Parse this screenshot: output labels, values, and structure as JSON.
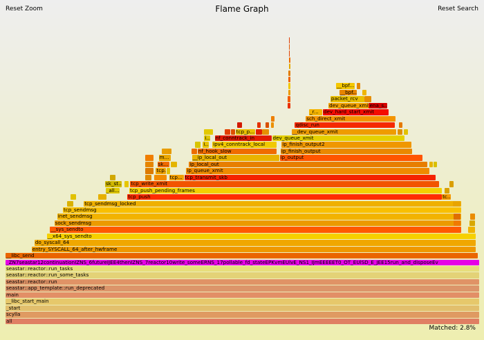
{
  "toolbar": {
    "reset_zoom": "Reset Zoom",
    "title": "Flame Graph",
    "reset_search": "Reset Search"
  },
  "status": {
    "matched": "Matched: 2.8%"
  },
  "search_highlight_color": "#e600e6",
  "frames": [
    {
      "label": "all",
      "x0": 0.0,
      "x1": 1.0,
      "depth": 0,
      "color": "#e07f63"
    },
    {
      "label": "scylla",
      "x0": 0.0,
      "x1": 1.0,
      "depth": 1,
      "color": "#df9a62"
    },
    {
      "label": "_start",
      "x0": 0.0,
      "x1": 1.0,
      "depth": 2,
      "color": "#e2bf6d"
    },
    {
      "label": "__libc_start_main",
      "x0": 0.0,
      "x1": 1.0,
      "depth": 3,
      "color": "#e6c86b"
    },
    {
      "label": "main",
      "x0": 0.0,
      "x1": 1.0,
      "depth": 4,
      "color": "#e28f66"
    },
    {
      "label": "seastar::app_template::run_deprecated",
      "x0": 0.0,
      "x1": 1.0,
      "depth": 5,
      "color": "#dc956a"
    },
    {
      "label": "seastar::reactor::run",
      "x0": 0.0,
      "x1": 1.0,
      "depth": 6,
      "color": "#e09366"
    },
    {
      "label": "seastar::reactor::run_some_tasks",
      "x0": 0.0,
      "x1": 1.0,
      "depth": 7,
      "color": "#e3d277"
    },
    {
      "label": "seastar::reactor::run_tasks",
      "x0": 0.0,
      "x1": 1.0,
      "depth": 8,
      "color": "#e6de7c"
    },
    {
      "label": "_ZN7seastar12continuationIZNS_6futureIJEE4thenIZNS_7reactor10write_someERNS_17pollable_fd_stateEPKvmEUlvE_NS1_IJmEEEEET0_OT_EUlSD_E_JEE15run_and_disposeEv",
      "x0": 0.0,
      "x1": 1.0,
      "depth": 9,
      "color": "#e600e6"
    },
    {
      "label": "__libc_send",
      "x0": 0.0,
      "x1": 0.997,
      "depth": 10,
      "color": "#ea6500"
    },
    {
      "label": "entry_SYSCALL_64_after_hwframe",
      "x0": 0.055,
      "x1": 0.992,
      "depth": 11,
      "color": "#ef9800"
    },
    {
      "label": "do_syscall_64",
      "x0": 0.061,
      "x1": 0.992,
      "depth": 12,
      "color": "#f0a700"
    },
    {
      "label": "__x64_sys_sendto",
      "x0": 0.087,
      "x1": 0.992,
      "depth": 13,
      "color": "#f6d000"
    },
    {
      "label": "__sys_sendto",
      "x0": 0.094,
      "x1": 0.961,
      "depth": 14,
      "color": "#ff5a00"
    },
    {
      "label": "sock_sendmsg",
      "x0": 0.103,
      "x1": 0.961,
      "depth": 15,
      "color": "#ec9a00"
    },
    {
      "label": "inet_sendmsg",
      "x0": 0.109,
      "x1": 0.961,
      "depth": 16,
      "color": "#f2b300"
    },
    {
      "label": "tcp_sendmsg",
      "x0": 0.121,
      "x1": 0.961,
      "depth": 17,
      "color": "#f9bf00"
    },
    {
      "label": "",
      "x0": 0.13,
      "x1": 0.144,
      "depth": 18,
      "color": "#d9b100"
    },
    {
      "label": "tcp_sendmsg_locked",
      "x0": 0.165,
      "x1": 0.961,
      "depth": 18,
      "color": "#efb000"
    },
    {
      "label": "",
      "x0": 0.137,
      "x1": 0.149,
      "depth": 19,
      "color": "#e1c100"
    },
    {
      "label": "",
      "x0": 0.196,
      "x1": 0.214,
      "depth": 19,
      "color": "#e6b000"
    },
    {
      "label": "tcp_push",
      "x0": 0.257,
      "x1": 0.92,
      "depth": 19,
      "color": "#ff2d00"
    },
    {
      "label": "tc...",
      "x0": 0.92,
      "x1": 0.94,
      "depth": 19,
      "color": "#f59a00"
    },
    {
      "label": "",
      "x0": 0.943,
      "x1": 0.96,
      "depth": 18,
      "color": "#e8a400"
    },
    {
      "label": "",
      "x0": 0.945,
      "x1": 0.96,
      "depth": 15,
      "color": "#f07a00"
    },
    {
      "label": "",
      "x0": 0.945,
      "x1": 0.96,
      "depth": 16,
      "color": "#e06f00"
    },
    {
      "label": "",
      "x0": 0.975,
      "x1": 0.99,
      "depth": 14,
      "color": "#f0b300"
    },
    {
      "label": "",
      "x0": 0.978,
      "x1": 0.99,
      "depth": 15,
      "color": "#d8a800"
    },
    {
      "label": "",
      "x0": 0.98,
      "x1": 0.99,
      "depth": 16,
      "color": "#ea8c00"
    },
    {
      "label": "_all...",
      "x0": 0.211,
      "x1": 0.241,
      "depth": 20,
      "color": "#e0c800"
    },
    {
      "label": "tcp_push_pending_frames",
      "x0": 0.261,
      "x1": 0.92,
      "depth": 20,
      "color": "#f3d000"
    },
    {
      "label": "",
      "x0": 0.925,
      "x1": 0.937,
      "depth": 20,
      "color": "#d9a000"
    },
    {
      "label": "sk_st...",
      "x0": 0.21,
      "x1": 0.246,
      "depth": 21,
      "color": "#d1b800"
    },
    {
      "label": "",
      "x0": 0.25,
      "x1": 0.26,
      "depth": 21,
      "color": "#e6c600"
    },
    {
      "label": "tcp_write_xmit",
      "x0": 0.263,
      "x1": 0.915,
      "depth": 21,
      "color": "#f25400"
    },
    {
      "label": "",
      "x0": 0.936,
      "x1": 0.945,
      "depth": 21,
      "color": "#d99e00"
    },
    {
      "label": "",
      "x0": 0.22,
      "x1": 0.232,
      "depth": 22,
      "color": "#d1a800"
    },
    {
      "label": "",
      "x0": 0.294,
      "x1": 0.308,
      "depth": 22,
      "color": "#e08a00"
    },
    {
      "label": "",
      "x0": 0.314,
      "x1": 0.34,
      "depth": 22,
      "color": "#f28c00"
    },
    {
      "label": "tcp...",
      "x0": 0.345,
      "x1": 0.377,
      "depth": 22,
      "color": "#f29f00"
    },
    {
      "label": "tcp_transmit_skb",
      "x0": 0.377,
      "x1": 0.908,
      "depth": 22,
      "color": "#f52300"
    },
    {
      "label": "",
      "x0": 0.295,
      "x1": 0.313,
      "depth": 23,
      "color": "#dd7a00"
    },
    {
      "label": "tcp...",
      "x0": 0.317,
      "x1": 0.339,
      "depth": 23,
      "color": "#f0a200"
    },
    {
      "label": "",
      "x0": 0.339,
      "x1": 0.348,
      "depth": 23,
      "color": "#e2bf00"
    },
    {
      "label": "ip_queue_xmit",
      "x0": 0.381,
      "x1": 0.895,
      "depth": 23,
      "color": "#ef8a00"
    },
    {
      "label": "",
      "x0": 0.295,
      "x1": 0.313,
      "depth": 24,
      "color": "#e68500"
    },
    {
      "label": "sk...",
      "x0": 0.32,
      "x1": 0.347,
      "depth": 24,
      "color": "#f06a00"
    },
    {
      "label": "",
      "x0": 0.349,
      "x1": 0.363,
      "depth": 24,
      "color": "#e4b500"
    },
    {
      "label": "ip_local_out",
      "x0": 0.387,
      "x1": 0.89,
      "depth": 24,
      "color": "#e77e00"
    },
    {
      "label": "",
      "x0": 0.893,
      "x1": 0.902,
      "depth": 24,
      "color": "#e6b400"
    },
    {
      "label": "",
      "x0": 0.902,
      "x1": 0.911,
      "depth": 24,
      "color": "#d9c000"
    },
    {
      "label": "",
      "x0": 0.295,
      "x1": 0.313,
      "depth": 25,
      "color": "#f07e00"
    },
    {
      "label": "m...",
      "x0": 0.323,
      "x1": 0.349,
      "depth": 25,
      "color": "#eaa700"
    },
    {
      "label": "__ip_local_out",
      "x0": 0.393,
      "x1": 0.578,
      "depth": 25,
      "color": "#e9b300"
    },
    {
      "label": "ip_output",
      "x0": 0.578,
      "x1": 0.88,
      "depth": 25,
      "color": "#ff5500"
    },
    {
      "label": "",
      "x0": 0.33,
      "x1": 0.349,
      "depth": 26,
      "color": "#e89d00"
    },
    {
      "label": "nf_hook_slow",
      "x0": 0.405,
      "x1": 0.572,
      "depth": 26,
      "color": "#f06b00"
    },
    {
      "label": "ip_finish_output",
      "x0": 0.58,
      "x1": 0.858,
      "depth": 26,
      "color": "#ea8800"
    },
    {
      "label": "",
      "x0": 0.342,
      "x1": 0.351,
      "depth": 26,
      "color": "#e69a00"
    },
    {
      "label": "",
      "x0": 0.392,
      "x1": 0.404,
      "depth": 26,
      "color": "#ec6c00"
    },
    {
      "label": "i...",
      "x0": 0.416,
      "x1": 0.43,
      "depth": 27,
      "color": "#e8c200"
    },
    {
      "label": "ipv4_conntrack_local",
      "x0": 0.436,
      "x1": 0.573,
      "depth": 27,
      "color": "#f0c900"
    },
    {
      "label": "ip_finish_output2",
      "x0": 0.582,
      "x1": 0.857,
      "depth": 27,
      "color": "#f09700"
    },
    {
      "label": "",
      "x0": 0.399,
      "x1": 0.412,
      "depth": 27,
      "color": "#d9c400"
    },
    {
      "label": "i...",
      "x0": 0.419,
      "x1": 0.432,
      "depth": 28,
      "color": "#e0c700"
    },
    {
      "label": "nf_conntrack_in",
      "x0": 0.441,
      "x1": 0.562,
      "depth": 28,
      "color": "#e21b00"
    },
    {
      "label": "dev_queue_xmit",
      "x0": 0.562,
      "x1": 0.842,
      "depth": 28,
      "color": "#e5d000"
    },
    {
      "label": "",
      "x0": 0.418,
      "x1": 0.438,
      "depth": 29,
      "color": "#e2c800"
    },
    {
      "label": "",
      "x0": 0.462,
      "x1": 0.474,
      "depth": 29,
      "color": "#e24000"
    },
    {
      "label": "",
      "x0": 0.475,
      "x1": 0.485,
      "depth": 29,
      "color": "#dd5000"
    },
    {
      "label": "tcp_p...",
      "x0": 0.485,
      "x1": 0.527,
      "depth": 29,
      "color": "#e9c100"
    },
    {
      "label": "",
      "x0": 0.527,
      "x1": 0.541,
      "depth": 29,
      "color": "#e12100"
    },
    {
      "label": "",
      "x0": 0.541,
      "x1": 0.556,
      "depth": 29,
      "color": "#e79000"
    },
    {
      "label": "__dev_queue_xmit",
      "x0": 0.603,
      "x1": 0.825,
      "depth": 29,
      "color": "#ef9c00"
    },
    {
      "label": "",
      "x0": 0.827,
      "x1": 0.838,
      "depth": 29,
      "color": "#e09000"
    },
    {
      "label": "",
      "x0": 0.84,
      "x1": 0.849,
      "depth": 29,
      "color": "#e2c200"
    },
    {
      "label": "",
      "x0": 0.489,
      "x1": 0.499,
      "depth": 30,
      "color": "#d21a00"
    },
    {
      "label": "",
      "x0": 0.53,
      "x1": 0.539,
      "depth": 30,
      "color": "#e43200"
    },
    {
      "label": "",
      "x0": 0.548,
      "x1": 0.556,
      "depth": 30,
      "color": "#d85000"
    },
    {
      "label": "",
      "x0": 0.56,
      "x1": 0.566,
      "depth": 30,
      "color": "#ec9000"
    },
    {
      "label": "qdisc_run",
      "x0": 0.61,
      "x1": 0.822,
      "depth": 30,
      "color": "#f52900"
    },
    {
      "label": "",
      "x0": 0.829,
      "x1": 0.838,
      "depth": 30,
      "color": "#e57900"
    },
    {
      "label": "",
      "x0": 0.56,
      "x1": 0.568,
      "depth": 31,
      "color": "#ed7e00"
    },
    {
      "label": "sch_direct_xmit",
      "x0": 0.633,
      "x1": 0.823,
      "depth": 31,
      "color": "#f49400"
    },
    {
      "label": "_r...",
      "x0": 0.64,
      "x1": 0.669,
      "depth": 32,
      "color": "#f3b300"
    },
    {
      "label": "dev_hard_start_xmit",
      "x0": 0.669,
      "x1": 0.808,
      "depth": 32,
      "color": "#f40d00"
    },
    {
      "label": "dev_queue_xmit...",
      "x0": 0.681,
      "x1": 0.766,
      "depth": 33,
      "color": "#f2a100"
    },
    {
      "label": "ena_s...",
      "x0": 0.766,
      "x1": 0.806,
      "depth": 33,
      "color": "#d40000"
    },
    {
      "label": "packet_rcv",
      "x0": 0.685,
      "x1": 0.757,
      "depth": 34,
      "color": "#e9be00"
    },
    {
      "label": "",
      "x0": 0.757,
      "x1": 0.772,
      "depth": 34,
      "color": "#e58d00"
    },
    {
      "label": "__bpf...",
      "x0": 0.704,
      "x1": 0.741,
      "depth": 35,
      "color": "#e68400"
    },
    {
      "label": "",
      "x0": 0.752,
      "x1": 0.762,
      "depth": 35,
      "color": "#efb500"
    },
    {
      "label": "__bpf...",
      "x0": 0.697,
      "x1": 0.737,
      "depth": 36,
      "color": "#f5c700"
    },
    {
      "label": "",
      "x0": 0.741,
      "x1": 0.748,
      "depth": 36,
      "color": "#e48800"
    },
    {
      "label": "",
      "x0": 0.595,
      "x1": 0.602,
      "depth": 33,
      "color": "#e93000"
    },
    {
      "label": "",
      "x0": 0.595,
      "x1": 0.602,
      "depth": 34,
      "color": "#f45c00"
    },
    {
      "label": "",
      "x0": 0.596,
      "x1": 0.601,
      "depth": 35,
      "color": "#ed9b00"
    },
    {
      "label": "",
      "x0": 0.596,
      "x1": 0.601,
      "depth": 36,
      "color": "#f3c700"
    },
    {
      "label": "",
      "x0": 0.596,
      "x1": 0.601,
      "depth": 37,
      "color": "#f06400"
    },
    {
      "label": "",
      "x0": 0.596,
      "x1": 0.601,
      "depth": 38,
      "color": "#e27d00"
    },
    {
      "label": "",
      "x0": 0.597,
      "x1": 0.601,
      "depth": 39,
      "color": "#e3a900"
    },
    {
      "label": "",
      "x0": 0.597,
      "x1": 0.601,
      "depth": 40,
      "color": "#f06d00"
    },
    {
      "label": "",
      "x0": 0.597,
      "x1": 0.6,
      "depth": 41,
      "color": "#e04100"
    },
    {
      "label": "",
      "x0": 0.597,
      "x1": 0.6,
      "depth": 42,
      "color": "#e15600"
    },
    {
      "label": "",
      "x0": 0.597,
      "x1": 0.6,
      "depth": 43,
      "color": "#df3c00"
    }
  ]
}
